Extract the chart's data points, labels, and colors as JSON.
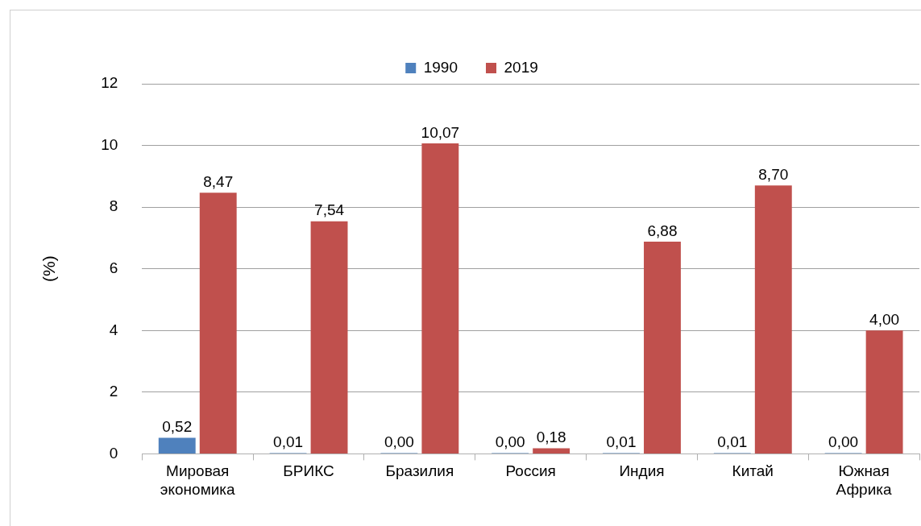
{
  "chart_data": {
    "type": "bar",
    "ylabel": "(%)",
    "categories": [
      "Мировая экономика",
      "БРИКС",
      "Бразилия",
      "Россия",
      "Индия",
      "Китай",
      "Южная Африка"
    ],
    "series": [
      {
        "name": "1990",
        "color": "#4f81bd",
        "values": [
          0.52,
          0.01,
          0,
          0,
          0.01,
          0.01,
          0
        ],
        "value_labels": [
          "0,52",
          "0,01",
          "0,00",
          "0,00",
          "0,01",
          "0,01",
          "0,00"
        ]
      },
      {
        "name": "2019",
        "color": "#c0504d",
        "values": [
          8.47,
          7.54,
          10.07,
          0.18,
          6.88,
          8.7,
          4
        ],
        "value_labels": [
          "8,47",
          "7,54",
          "10,07",
          "0,18",
          "6,88",
          "8,70",
          "4,00"
        ]
      }
    ],
    "ylim": [
      0,
      12
    ],
    "yticks": [
      0,
      2,
      4,
      6,
      8,
      10,
      12
    ],
    "grid": "y",
    "legend": "top"
  }
}
